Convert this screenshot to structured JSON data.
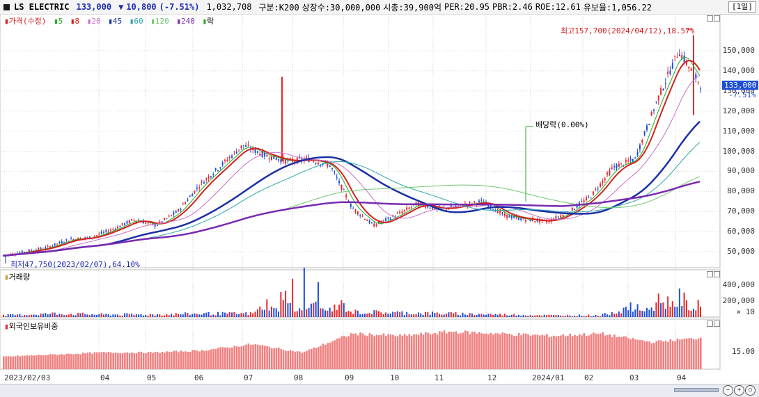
{
  "header": {
    "stock_name": "LS ELECTRIC",
    "price": "133,000",
    "change_arrow": "▼",
    "change": "10,800",
    "change_pct": "(-7.51%)",
    "volume": "1,032,708",
    "segment": "구분:K200",
    "shares": "상장수:30,000,000",
    "market_cap": "시총:39,900억",
    "per": "PER:20.95",
    "pbr": "PBR:2.46",
    "roe": "ROE:12.61",
    "float_ratio": "유보율:1,056.22",
    "period_button": "[1일]"
  },
  "price_panel": {
    "legend": {
      "price_label": "가격(수정)",
      "ma": [
        "5",
        "8",
        "20",
        "45",
        "60",
        "120",
        "240"
      ],
      "ex_dividend": "락"
    },
    "y_ticks": [
      "150,000",
      "140,000",
      "130,000",
      "120,000",
      "110,000",
      "100,000",
      "90,000",
      "80,000",
      "70,000",
      "60,000",
      "50,000"
    ],
    "current_price_tag": "133,000",
    "current_change_tag": "-7.51%",
    "high_annotation": "최고157,700(2024/04/12),18.57%",
    "low_annotation": "최저47,750(2023/02/07),64.10%",
    "dividend_annotation": "배당락(0.00%)"
  },
  "volume_panel": {
    "label": "거래량",
    "y_ticks": [
      "400,000",
      "200,000",
      "× 10"
    ]
  },
  "foreign_panel": {
    "label": "외국인보유비중",
    "y_ticks": [
      "15.00"
    ]
  },
  "x_axis": {
    "labels": [
      "2023/02/03",
      "04",
      "05",
      "06",
      "07",
      "08",
      "09",
      "10",
      "11",
      "12",
      "2024/01",
      "02",
      "03",
      "04"
    ]
  },
  "colors": {
    "up": "#e8262a",
    "down": "#1d4fd8",
    "ma5": "#22aa22",
    "ma8": "#d81e1e",
    "ma20": "#c86ec8",
    "ma45": "#1a2fa8",
    "ma60": "#2ca7a7",
    "ma120": "#6cc86c",
    "ma240": "#7a2ab0",
    "foreign_bar": "#f08080"
  },
  "chart_data": {
    "type": "line",
    "title": "LS ELECTRIC",
    "x": [
      "2023/02",
      "2023/03",
      "2023/04",
      "2023/05",
      "2023/06",
      "2023/07",
      "2023/08",
      "2023/09",
      "2023/10",
      "2023/11",
      "2023/12",
      "2024/01",
      "2024/02",
      "2024/03",
      "2024/04"
    ],
    "series": [
      {
        "name": "가격(수정)",
        "values": [
          50000,
          53000,
          56000,
          63000,
          67000,
          80000,
          100000,
          97000,
          95000,
          63000,
          73000,
          72000,
          67000,
          90000,
          133000
        ]
      },
      {
        "name": "45",
        "values": [
          50000,
          51000,
          52000,
          56000,
          60000,
          68000,
          85000,
          94000,
          95000,
          80000,
          73000,
          71000,
          70000,
          73000,
          87000
        ]
      },
      {
        "name": "240",
        "values": [
          49000,
          50000,
          51000,
          53000,
          55000,
          58000,
          61000,
          66000,
          69000,
          70000,
          70000,
          71000,
          72000,
          75000,
          80000
        ]
      }
    ],
    "volume_x10": [
      20000,
      40000,
      30000,
      30000,
      40000,
      40000,
      420000,
      60000,
      50000,
      40000,
      30000,
      20000,
      20000,
      180000,
      340000
    ],
    "foreign_ratio": [
      6,
      7,
      8,
      8,
      9,
      12,
      8,
      17,
      16,
      18,
      17,
      16,
      17,
      13,
      15
    ],
    "ylim": [
      45000,
      165000
    ],
    "grid": true,
    "legend": "top-left"
  }
}
